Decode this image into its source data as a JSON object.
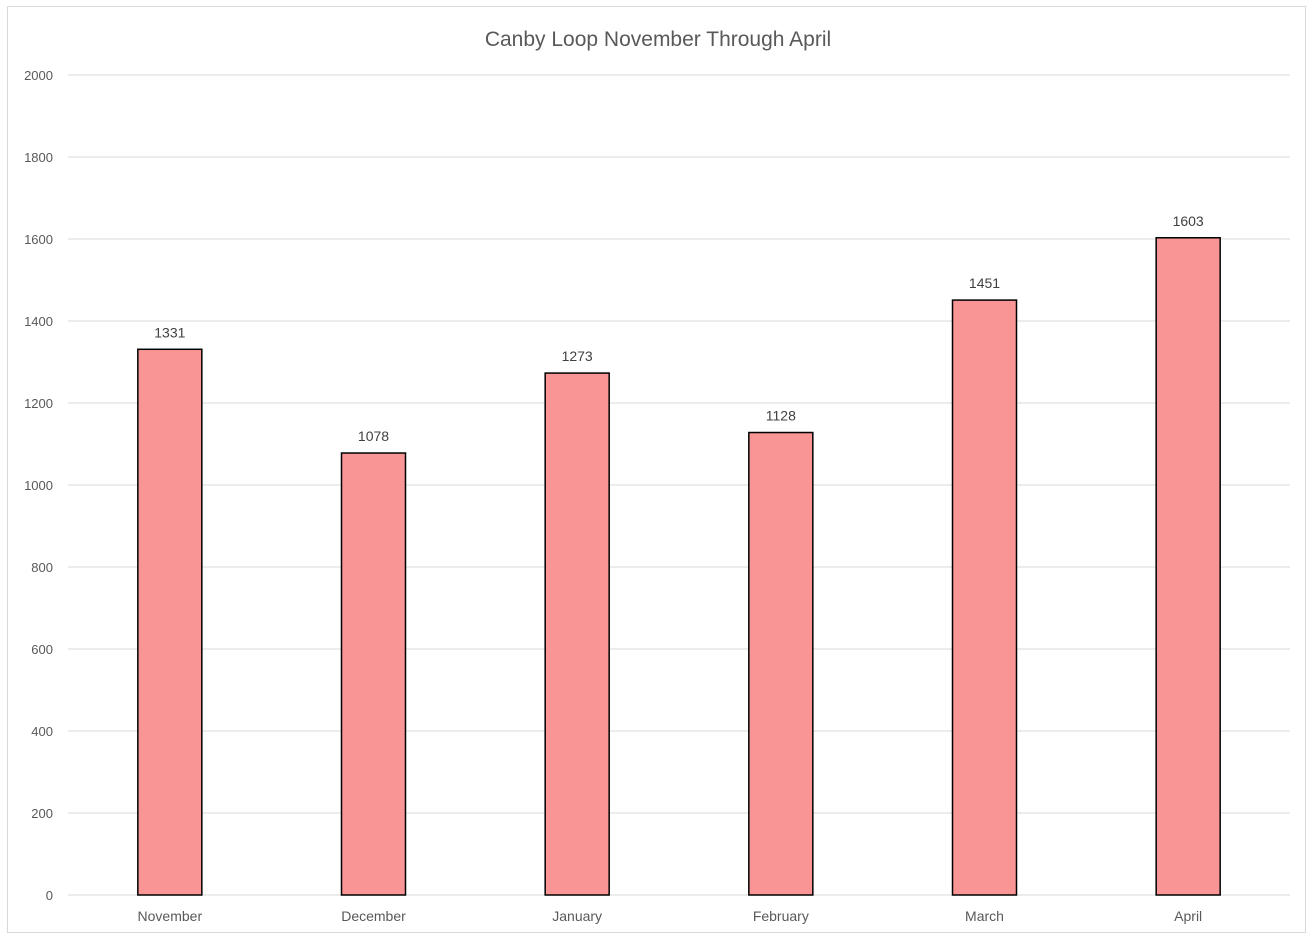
{
  "chart_data": {
    "type": "bar",
    "title": "Canby Loop November Through April",
    "xlabel": "",
    "ylabel": "",
    "categories": [
      "November",
      "December",
      "January",
      "February",
      "March",
      "April"
    ],
    "values": [
      1331,
      1078,
      1273,
      1128,
      1451,
      1603
    ],
    "ylim": [
      0,
      2000
    ],
    "yticks": [
      "0",
      "200",
      "400",
      "600",
      "800",
      "1000",
      "1200",
      "1400",
      "1600",
      "1800",
      "2000"
    ],
    "data_labels": [
      "1331",
      "1078",
      "1273",
      "1128",
      "1451",
      "1603"
    ],
    "grid": true,
    "legend": "none",
    "colors": {
      "bar_fill": "#f99594",
      "bar_stroke": "#000000",
      "grid": "#d9d9d9",
      "text": "#595959"
    }
  }
}
